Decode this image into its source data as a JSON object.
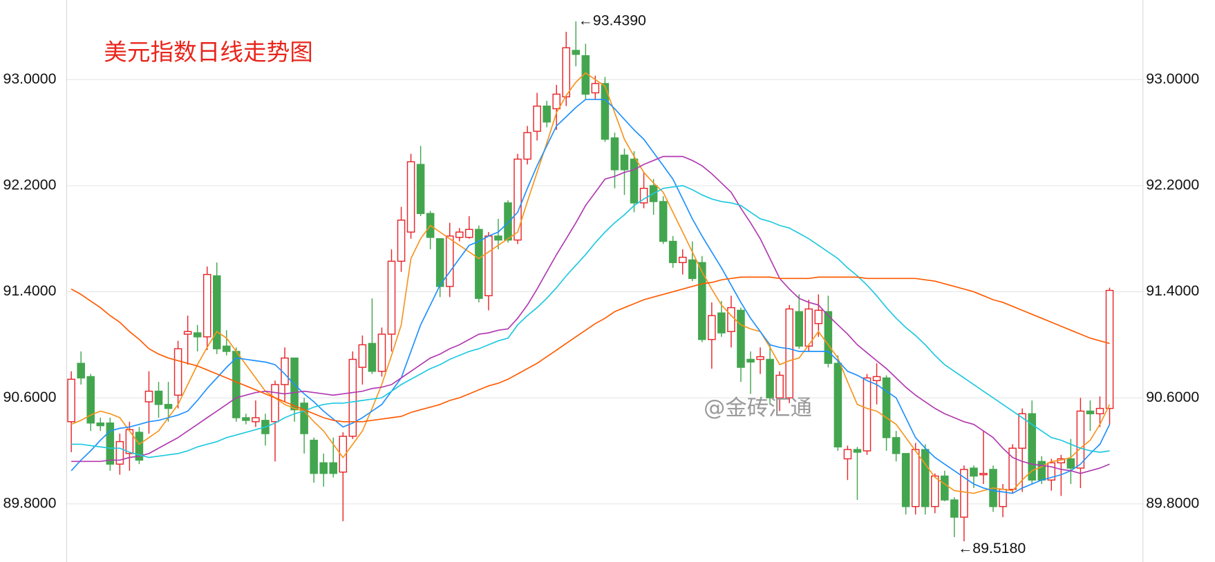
{
  "chart_data": {
    "type": "candlestick",
    "title": "美元指数日线走势图",
    "watermark": "@金砖汇通",
    "annotations": [
      "←93.4390",
      "←89.5180"
    ],
    "ylim": [
      89.362,
      93.6
    ],
    "yticks": [
      {
        "value": 89.8,
        "label": "89.8000"
      },
      {
        "value": 90.6,
        "label": "90.6000"
      },
      {
        "value": 91.4,
        "label": "91.4000"
      },
      {
        "value": 92.2,
        "label": "92.2000"
      },
      {
        "value": 93.0,
        "label": "93.0000"
      }
    ],
    "grid": true,
    "up_color": "#e8262b",
    "down_color": "#43a64f",
    "open": [
      90.42,
      90.86,
      90.76,
      90.41,
      90.41,
      90.1,
      90.18,
      90.34,
      90.57,
      90.65,
      90.55,
      90.62,
      91.08,
      91.09,
      91.06,
      91.52,
      90.99,
      90.95,
      90.45,
      90.42,
      90.43,
      90.42,
      90.7,
      90.9,
      90.56,
      90.28,
      90.11,
      90.11,
      90.04,
      90.31,
      90.83,
      91.01,
      90.8,
      91.08,
      91.63,
      91.85,
      92.36,
      91.99,
      91.8,
      91.44,
      91.81,
      91.81,
      91.87,
      91.37,
      91.82,
      92.07,
      91.79,
      92.4,
      92.61,
      92.8,
      92.78,
      92.87,
      93.22,
      93.18,
      92.9,
      92.97,
      92.56,
      92.43,
      92.4,
      92.07,
      92.2,
      92.08,
      91.78,
      91.62,
      91.64,
      91.62,
      91.04,
      91.24,
      91.1,
      91.26,
      90.89,
      90.89,
      90.89,
      90.6,
      90.6,
      91.25,
      90.99,
      91.16,
      91.25,
      90.86,
      90.14,
      90.21,
      90.2,
      90.73,
      90.75,
      90.3,
      90.18,
      89.78,
      90.21,
      89.78,
      90.01,
      89.83,
      89.7,
      90.07,
      90.02,
      90.06,
      89.78,
      89.91,
      90.22,
      90.48,
      90.12,
      89.98,
      90.11,
      90.14,
      90.07,
      90.5,
      90.48,
      90.52
    ],
    "high": [
      90.8,
      90.95,
      90.78,
      90.45,
      90.45,
      90.33,
      90.42,
      90.38,
      90.8,
      90.72,
      90.72,
      91.03,
      91.22,
      91.15,
      91.59,
      91.62,
      91.11,
      90.98,
      90.48,
      90.58,
      90.48,
      90.73,
      90.98,
      90.9,
      90.6,
      90.3,
      90.18,
      90.3,
      90.34,
      90.95,
      91.07,
      91.35,
      91.13,
      91.72,
      92.04,
      92.44,
      92.5,
      92.01,
      91.8,
      91.92,
      91.88,
      91.97,
      91.9,
      91.85,
      91.95,
      92.09,
      92.44,
      92.65,
      92.9,
      92.84,
      92.96,
      93.36,
      93.439,
      93.27,
      93.03,
      93.02,
      92.6,
      92.48,
      92.46,
      92.3,
      92.25,
      92.12,
      91.82,
      91.72,
      91.78,
      91.67,
      91.32,
      91.33,
      91.37,
      91.28,
      90.95,
      90.98,
      91.0,
      90.8,
      91.3,
      91.38,
      91.34,
      91.38,
      91.37,
      90.92,
      90.24,
      90.23,
      90.78,
      90.86,
      90.77,
      90.35,
      90.18,
      90.26,
      90.25,
      90.03,
      90.05,
      89.85,
      90.09,
      90.09,
      90.35,
      90.09,
      89.95,
      90.25,
      90.52,
      90.58,
      90.16,
      90.14,
      90.17,
      90.29,
      90.6,
      90.58,
      90.61,
      91.43
    ],
    "low": [
      90.19,
      90.7,
      90.35,
      90.35,
      90.05,
      90.02,
      90.05,
      90.1,
      90.33,
      90.45,
      90.42,
      90.52,
      90.85,
      90.95,
      90.96,
      90.93,
      90.92,
      90.42,
      90.4,
      90.38,
      90.24,
      90.12,
      90.57,
      90.42,
      90.18,
      89.96,
      89.93,
      90.0,
      89.67,
      90.29,
      90.7,
      90.78,
      90.76,
      90.95,
      91.55,
      91.8,
      91.97,
      91.72,
      91.36,
      91.36,
      91.78,
      91.8,
      91.32,
      91.26,
      91.72,
      91.77,
      91.76,
      92.36,
      92.54,
      92.64,
      92.62,
      92.8,
      93.1,
      92.85,
      92.85,
      92.53,
      92.18,
      92.13,
      92.0,
      92.03,
      91.98,
      91.76,
      91.58,
      91.53,
      91.48,
      91.02,
      90.82,
      91.06,
      90.98,
      90.72,
      90.63,
      90.78,
      90.55,
      90.5,
      90.56,
      90.97,
      90.95,
      91.06,
      90.83,
      90.2,
      89.98,
      89.83,
      90.17,
      90.55,
      90.2,
      90.12,
      89.72,
      89.72,
      89.72,
      89.73,
      89.82,
      89.55,
      89.518,
      89.92,
      89.95,
      89.74,
      89.7,
      89.88,
      89.89,
      89.95,
      89.95,
      89.9,
      89.86,
      89.95,
      89.92,
      90.35,
      90.38,
      90.4
    ],
    "close": [
      90.74,
      90.75,
      90.41,
      90.39,
      90.1,
      90.27,
      90.36,
      90.13,
      90.65,
      90.55,
      90.52,
      90.97,
      91.1,
      91.06,
      91.53,
      90.97,
      90.95,
      90.45,
      90.43,
      90.45,
      90.33,
      90.7,
      90.9,
      90.51,
      90.33,
      90.03,
      90.03,
      90.03,
      90.31,
      90.89,
      91.0,
      90.8,
      91.08,
      91.63,
      91.94,
      92.38,
      91.99,
      91.81,
      91.44,
      91.82,
      91.85,
      91.87,
      91.35,
      91.82,
      91.79,
      91.79,
      92.4,
      92.6,
      92.8,
      92.68,
      92.89,
      93.24,
      93.19,
      92.89,
      92.97,
      92.55,
      92.32,
      92.32,
      92.07,
      92.18,
      92.08,
      91.78,
      91.62,
      91.66,
      91.5,
      91.04,
      91.22,
      91.09,
      91.28,
      90.83,
      90.87,
      90.91,
      90.6,
      90.77,
      91.27,
      90.99,
      91.27,
      91.26,
      90.86,
      90.23,
      90.21,
      90.19,
      90.75,
      90.76,
      90.3,
      90.18,
      89.78,
      90.21,
      89.78,
      90.01,
      89.83,
      89.7,
      90.06,
      90.01,
      90.03,
      89.78,
      89.91,
      90.22,
      90.48,
      89.98,
      89.98,
      90.11,
      90.14,
      90.07,
      90.5,
      90.48,
      90.52,
      91.41
    ],
    "series": [
      {
        "color": "#f7941d",
        "values": [
          90.4,
          90.43,
          90.47,
          90.5,
          90.48,
          90.45,
          90.35,
          90.25,
          90.3,
          90.35,
          90.45,
          90.55,
          90.7,
          90.85,
          90.98,
          91.1,
          91.05,
          90.95,
          90.85,
          90.75,
          90.65,
          90.6,
          90.55,
          90.52,
          90.5,
          90.42,
          90.35,
          90.25,
          90.15,
          90.25,
          90.35,
          90.52,
          90.7,
          90.92,
          91.15,
          91.65,
          91.8,
          91.9,
          91.85,
          91.8,
          91.75,
          91.7,
          91.65,
          91.7,
          91.75,
          91.8,
          91.85,
          92.08,
          92.3,
          92.52,
          92.75,
          92.88,
          92.98,
          93.05,
          93.0,
          92.95,
          92.75,
          92.55,
          92.42,
          92.3,
          92.22,
          92.15,
          92.0,
          91.85,
          91.7,
          91.55,
          91.42,
          91.3,
          91.22,
          91.15,
          91.12,
          91.1,
          90.98,
          90.85,
          90.88,
          90.9,
          91.0,
          91.1,
          91.0,
          90.9,
          90.72,
          90.55,
          90.52,
          90.5,
          90.45,
          90.4,
          90.3,
          90.2,
          90.1,
          90.0,
          89.95,
          89.9,
          89.89,
          89.88,
          89.9,
          89.92,
          89.91,
          89.9,
          89.98,
          90.05,
          90.08,
          90.12,
          90.13,
          90.15,
          90.22,
          90.28,
          90.4,
          90.55
        ]
      },
      {
        "color": "#1e90ff",
        "values": [
          90.05,
          90.13,
          90.2,
          90.28,
          90.35,
          90.37,
          90.38,
          90.4,
          90.42,
          90.43,
          90.45,
          90.47,
          90.5,
          90.58,
          90.67,
          90.75,
          90.83,
          90.9,
          90.89,
          90.88,
          90.87,
          90.85,
          90.78,
          90.7,
          90.63,
          90.57,
          90.5,
          90.44,
          90.38,
          90.41,
          90.45,
          90.5,
          90.55,
          90.65,
          90.75,
          90.95,
          91.15,
          91.3,
          91.45,
          91.55,
          91.65,
          91.75,
          91.78,
          91.82,
          91.85,
          91.92,
          92.0,
          92.18,
          92.35,
          92.5,
          92.65,
          92.72,
          92.79,
          92.85,
          92.85,
          92.85,
          92.78,
          92.7,
          92.62,
          92.55,
          92.45,
          92.35,
          92.25,
          92.1,
          91.95,
          91.82,
          91.7,
          91.58,
          91.45,
          91.32,
          91.2,
          91.1,
          91.0,
          90.98,
          90.97,
          90.95,
          90.95,
          90.95,
          90.95,
          90.88,
          90.8,
          90.77,
          90.73,
          90.7,
          90.65,
          90.6,
          90.45,
          90.3,
          90.22,
          90.15,
          90.1,
          90.05,
          90.0,
          89.95,
          89.92,
          89.9,
          89.89,
          89.88,
          89.92,
          89.95,
          89.98,
          90.0,
          90.02,
          90.05,
          90.1,
          90.18,
          90.25,
          90.4
        ]
      },
      {
        "color": "#b03ab0",
        "values": [
          90.12,
          90.12,
          90.12,
          90.12,
          90.13,
          90.13,
          90.15,
          90.16,
          90.18,
          90.22,
          90.26,
          90.3,
          90.35,
          90.4,
          90.45,
          90.5,
          90.55,
          90.6,
          90.62,
          90.64,
          90.65,
          90.64,
          90.63,
          90.64,
          90.65,
          90.64,
          90.63,
          90.62,
          90.63,
          90.64,
          90.65,
          90.67,
          90.68,
          90.7,
          90.75,
          90.8,
          90.85,
          90.9,
          90.93,
          90.97,
          91.0,
          91.04,
          91.08,
          91.09,
          91.11,
          91.12,
          91.2,
          91.3,
          91.42,
          91.55,
          91.68,
          91.8,
          91.92,
          92.05,
          92.15,
          92.25,
          92.27,
          92.3,
          92.32,
          92.36,
          92.39,
          92.42,
          92.42,
          92.42,
          92.39,
          92.35,
          92.29,
          92.22,
          92.15,
          92.03,
          91.92,
          91.8,
          91.65,
          91.5,
          91.42,
          91.35,
          91.32,
          91.3,
          91.22,
          91.15,
          91.08,
          91.0,
          90.94,
          90.88,
          90.82,
          90.75,
          90.68,
          90.62,
          90.57,
          90.52,
          90.48,
          90.45,
          90.42,
          90.4,
          90.35,
          90.3,
          90.22,
          90.15,
          90.12,
          90.1,
          90.09,
          90.08,
          90.06,
          90.05,
          90.03,
          90.05,
          90.07,
          90.1
        ]
      },
      {
        "color": "#1ec8e0",
        "values": [
          90.25,
          90.25,
          90.24,
          90.23,
          90.22,
          90.22,
          90.19,
          90.17,
          90.15,
          90.16,
          90.17,
          90.18,
          90.2,
          90.23,
          90.25,
          90.27,
          90.3,
          90.32,
          90.34,
          90.36,
          90.38,
          90.41,
          90.45,
          90.48,
          90.5,
          90.53,
          90.55,
          90.56,
          90.56,
          90.57,
          90.58,
          90.59,
          90.6,
          90.65,
          90.7,
          90.74,
          90.78,
          90.82,
          90.85,
          90.89,
          90.92,
          90.95,
          90.97,
          91.0,
          91.03,
          91.05,
          91.15,
          91.22,
          91.28,
          91.35,
          91.43,
          91.52,
          91.6,
          91.68,
          91.77,
          91.85,
          91.92,
          91.98,
          92.05,
          92.1,
          92.14,
          92.18,
          92.19,
          92.2,
          92.17,
          92.13,
          92.1,
          92.08,
          92.07,
          92.05,
          92.0,
          91.95,
          91.93,
          91.9,
          91.88,
          91.84,
          91.8,
          91.75,
          91.7,
          91.65,
          91.58,
          91.52,
          91.45,
          91.37,
          91.28,
          91.2,
          91.13,
          91.07,
          91.0,
          90.92,
          90.85,
          90.8,
          90.75,
          90.7,
          90.65,
          90.6,
          90.55,
          90.5,
          90.45,
          90.4,
          90.35,
          90.3,
          90.28,
          90.25,
          90.22,
          90.2,
          90.19,
          90.2
        ]
      },
      {
        "color": "#ff5a00",
        "values": [
          91.42,
          91.38,
          91.33,
          91.28,
          91.22,
          91.17,
          91.1,
          91.04,
          90.97,
          90.93,
          90.9,
          90.88,
          90.86,
          90.84,
          90.81,
          90.78,
          90.75,
          90.72,
          90.69,
          90.66,
          90.63,
          90.6,
          90.57,
          90.54,
          90.51,
          90.48,
          90.45,
          90.43,
          90.42,
          90.42,
          90.42,
          90.43,
          90.44,
          90.45,
          90.46,
          90.49,
          90.51,
          90.53,
          90.55,
          90.58,
          90.6,
          90.63,
          90.66,
          90.69,
          90.71,
          90.74,
          90.78,
          90.82,
          90.86,
          90.91,
          90.96,
          91.01,
          91.06,
          91.11,
          91.16,
          91.2,
          91.25,
          91.28,
          91.31,
          91.34,
          91.36,
          91.38,
          91.4,
          91.42,
          91.44,
          91.46,
          91.47,
          91.49,
          91.5,
          91.51,
          91.51,
          91.51,
          91.51,
          91.5,
          91.5,
          91.5,
          91.5,
          91.51,
          91.51,
          91.51,
          91.51,
          91.51,
          91.5,
          91.5,
          91.5,
          91.5,
          91.5,
          91.5,
          91.49,
          91.48,
          91.46,
          91.44,
          91.42,
          91.4,
          91.37,
          91.34,
          91.32,
          91.29,
          91.26,
          91.23,
          91.2,
          91.17,
          91.14,
          91.11,
          91.08,
          91.05,
          91.03,
          91.01
        ]
      }
    ]
  }
}
